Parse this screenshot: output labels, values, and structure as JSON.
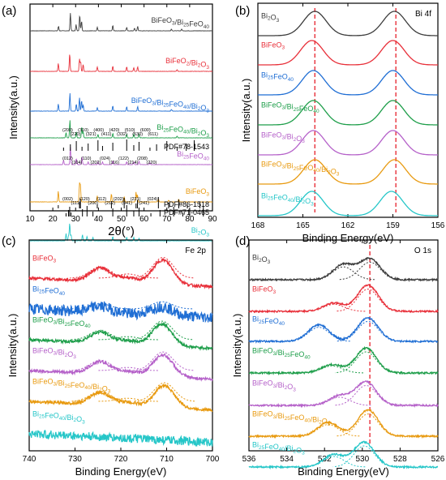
{
  "chart_data": [
    {
      "type": "line",
      "panel_label": "(a)",
      "xlabel": "2θ(°)",
      "ylabel": "Intensity(a.u.)",
      "xlim": [
        10,
        90
      ],
      "xticks": [
        10,
        20,
        30,
        40,
        50,
        60,
        70,
        80,
        90
      ],
      "series": [
        {
          "name": "BiFeO3/Bi25FeO40",
          "color": "#3c3c3c",
          "peaks": [
            [
              27.7,
              1.0
            ],
            [
              30.2,
              0.35
            ],
            [
              31.8,
              0.9
            ],
            [
              32.6,
              0.55
            ],
            [
              22.5,
              0.25
            ],
            [
              39.5,
              0.2
            ],
            [
              46.3,
              0.3
            ],
            [
              57.2,
              0.25
            ],
            [
              52.4,
              0.2
            ],
            [
              55.8,
              0.15
            ],
            [
              72.0,
              0.1
            ],
            [
              76.5,
              0.1
            ]
          ]
        },
        {
          "name": "BiFeO2/Bi2O3",
          "color": "#e8303a",
          "peaks": [
            [
              27.4,
              1.0
            ],
            [
              22.4,
              0.45
            ],
            [
              31.7,
              0.7
            ],
            [
              32.2,
              0.55
            ],
            [
              33.3,
              0.4
            ],
            [
              39.5,
              0.25
            ],
            [
              46.3,
              0.3
            ],
            [
              52.4,
              0.25
            ],
            [
              55.5,
              0.2
            ],
            [
              57.2,
              0.25
            ],
            [
              74.5,
              0.1
            ]
          ]
        },
        {
          "name": "BiFeO3/Bi25FeO40/Bi2O3",
          "color": "#1f6ed4",
          "peaks": [
            [
              27.5,
              1.0
            ],
            [
              22.4,
              0.4
            ],
            [
              30.3,
              0.4
            ],
            [
              31.7,
              0.75
            ],
            [
              32.6,
              0.6
            ],
            [
              33.3,
              0.35
            ],
            [
              39.5,
              0.2
            ],
            [
              46.3,
              0.3
            ],
            [
              52.4,
              0.25
            ],
            [
              57.2,
              0.25
            ],
            [
              72.0,
              0.1
            ]
          ]
        },
        {
          "name": "Bi25FeO40/Bi2O3",
          "color": "#1e9e4a",
          "peaks": [
            [
              27.5,
              1.0
            ],
            [
              25.8,
              0.3
            ],
            [
              30.3,
              0.35
            ],
            [
              32.7,
              0.6
            ],
            [
              33.3,
              0.35
            ],
            [
              39.8,
              0.2
            ],
            [
              46.3,
              0.25
            ],
            [
              52.4,
              0.2
            ],
            [
              55.5,
              0.2
            ],
            [
              57.8,
              0.2
            ],
            [
              74.5,
              0.1
            ]
          ]
        },
        {
          "name": "Bi25FeO40",
          "color": "#b561c9",
          "peaks": [
            [
              27.7,
              1.0
            ],
            [
              24.7,
              0.25
            ],
            [
              30.3,
              0.35
            ],
            [
              32.8,
              0.45
            ],
            [
              35.5,
              0.15
            ],
            [
              39.8,
              0.15
            ],
            [
              41.8,
              0.15
            ],
            [
              46.3,
              0.2
            ],
            [
              52.4,
              0.15
            ],
            [
              55.5,
              0.15
            ],
            [
              57.8,
              0.2
            ],
            [
              62.6,
              0.1
            ]
          ]
        },
        {
          "name": "BiFeO3",
          "color": "#e89a10",
          "peaks": [
            [
              22.4,
              0.6
            ],
            [
              31.7,
              1.0
            ],
            [
              32.1,
              0.9
            ],
            [
              39.5,
              0.35
            ],
            [
              45.7,
              0.45
            ],
            [
              51.3,
              0.3
            ],
            [
              56.5,
              0.55
            ],
            [
              57.1,
              0.4
            ],
            [
              66.3,
              0.15
            ],
            [
              70.8,
              0.1
            ],
            [
              75.2,
              0.15
            ]
          ]
        },
        {
          "name": "Bi2O3",
          "color": "#25c6c8",
          "peaks": [
            [
              27.4,
              1.0
            ],
            [
              25.8,
              0.4
            ],
            [
              26.9,
              0.3
            ],
            [
              28.0,
              0.35
            ],
            [
              33.0,
              0.35
            ],
            [
              35.0,
              0.25
            ],
            [
              37.6,
              0.2
            ],
            [
              46.3,
              0.25
            ],
            [
              52.4,
              0.2
            ],
            [
              55.5,
              0.2
            ],
            [
              57.8,
              0.15
            ]
          ]
        }
      ],
      "references": [
        {
          "label": "PDF#78-1543",
          "sticks": [
            24.7,
            27.7,
            30.3,
            32.8,
            35.5,
            39.8,
            41.8,
            46.3,
            52.4,
            55.5,
            57.8,
            62.6,
            65.5,
            70.0,
            74.5,
            78.5,
            82.0
          ]
        },
        {
          "label": "PDF#86-1518",
          "sticks": [
            22.4,
            31.7,
            32.1,
            39.5,
            45.7,
            51.3,
            56.5,
            57.1,
            66.3,
            70.8,
            75.2,
            79.0,
            84.5
          ]
        },
        {
          "label": "PDF#71-0465",
          "sticks": [
            25.8,
            26.9,
            27.4,
            28.0,
            33.0,
            35.0,
            37.6,
            46.3,
            52.4,
            55.5,
            57.8,
            63.0,
            67.0,
            73.0,
            77.0,
            80.0,
            86.0
          ]
        }
      ],
      "peak_labels": {
        "Bi25FeO40": [
          "(200)",
          "(220)",
          "(310)",
          "(321)",
          "(400)",
          "(411)",
          "(420)",
          "(332)",
          "(510)",
          "(530)",
          "(600)",
          "(611)"
        ],
        "BiFeO3": [
          "(012)",
          "(104)",
          "(110)",
          "(202)",
          "(024)",
          "(116)",
          "(122)",
          "(214)",
          "(208)",
          "(220)"
        ],
        "Bi2O3": [
          "(002)",
          "(111)",
          "(120)",
          "(200)",
          "(112)",
          "(212)",
          "(202)",
          "(041)",
          "(231)",
          "(241)",
          "(024)"
        ]
      }
    },
    {
      "type": "line",
      "panel_label": "(b)",
      "panel_title": "Bi 4f",
      "xlabel": "Binding Energy(eV)",
      "ylabel": "Intensity(a.u.)",
      "xlim": [
        168,
        156
      ],
      "xticks": [
        168,
        165,
        162,
        159,
        156
      ],
      "reference_lines": [
        164.2,
        158.8
      ],
      "series": [
        {
          "name": "Bi2O3",
          "color": "#3c3c3c",
          "peaks": [
            [
              164.2,
              1.0
            ],
            [
              158.9,
              1.0
            ]
          ]
        },
        {
          "name": "BiFeO3",
          "color": "#e8303a",
          "peaks": [
            [
              164.4,
              1.0
            ],
            [
              159.0,
              1.0
            ]
          ]
        },
        {
          "name": "Bi25FeO40",
          "color": "#1f6ed4",
          "peaks": [
            [
              164.3,
              1.0
            ],
            [
              159.0,
              1.0
            ]
          ]
        },
        {
          "name": "BiFeO3/Bi25FeO40",
          "color": "#1e9e4a",
          "peaks": [
            [
              164.3,
              1.0
            ],
            [
              159.0,
              1.0
            ]
          ]
        },
        {
          "name": "BiFeO3/Bi2O3",
          "color": "#b561c9",
          "peaks": [
            [
              164.3,
              1.0
            ],
            [
              159.0,
              1.0
            ]
          ]
        },
        {
          "name": "BiFeO3/Bi25FeO40/Bi2O3",
          "color": "#e89a10",
          "peaks": [
            [
              164.2,
              1.0
            ],
            [
              158.9,
              1.0
            ]
          ]
        },
        {
          "name": "Bi25FeO40/Bi2O3",
          "color": "#25c6c8",
          "peaks": [
            [
              164.4,
              1.0
            ],
            [
              159.1,
              1.0
            ]
          ]
        }
      ]
    },
    {
      "type": "line",
      "panel_label": "(c)",
      "panel_title": "Fe 2p",
      "xlabel": "Binding Energy(eV)",
      "ylabel": "Intensity(a.u.)",
      "xlim": [
        740,
        700
      ],
      "xticks": [
        740,
        730,
        720,
        710,
        700
      ],
      "series": [
        {
          "name": "BiFeO3",
          "color": "#e8303a",
          "peaks": [
            [
              724.5,
              0.55
            ],
            [
              718.5,
              0.2
            ],
            [
              710.8,
              1.0
            ]
          ]
        },
        {
          "name": "Bi25FeO40",
          "color": "#1f6ed4",
          "peaks": [
            [
              724.5,
              0.25
            ],
            [
              711.0,
              0.35
            ]
          ]
        },
        {
          "name": "BiFeO3/Bi25FeO40",
          "color": "#1e9e4a",
          "peaks": [
            [
              724.5,
              0.45
            ],
            [
              718.5,
              0.15
            ],
            [
              711.0,
              0.9
            ]
          ]
        },
        {
          "name": "BiFeO3/Bi2O3",
          "color": "#b561c9",
          "peaks": [
            [
              724.5,
              0.5
            ],
            [
              718.5,
              0.15
            ],
            [
              710.8,
              0.9
            ]
          ]
        },
        {
          "name": "BiFeO3/Bi25FeO40/Bi2O3",
          "color": "#e89a10",
          "peaks": [
            [
              724.5,
              0.5
            ],
            [
              718.5,
              0.15
            ],
            [
              710.5,
              0.9
            ]
          ]
        },
        {
          "name": "Bi25FeO40/Bi2O3",
          "color": "#25c6c8",
          "peaks": []
        }
      ]
    },
    {
      "type": "line",
      "panel_label": "(d)",
      "panel_title": "O 1s",
      "xlabel": "Binding Energy(eV)",
      "ylabel": "Intensity(a.u.)",
      "xlim": [
        536,
        526
      ],
      "xticks": [
        536,
        534,
        532,
        530,
        528,
        526
      ],
      "reference_lines": [
        529.6
      ],
      "series": [
        {
          "name": "Bi2O3",
          "color": "#3c3c3c",
          "peaks": [
            [
              531.0,
              0.55
            ],
            [
              529.6,
              0.75
            ]
          ]
        },
        {
          "name": "BiFeO3",
          "color": "#e8303a",
          "peaks": [
            [
              531.5,
              0.3
            ],
            [
              529.7,
              0.95
            ]
          ]
        },
        {
          "name": "Bi25FeO40",
          "color": "#1f6ed4",
          "peaks": [
            [
              532.3,
              0.6
            ],
            [
              529.7,
              0.85
            ]
          ]
        },
        {
          "name": "BiFeO3/Bi25FeO40",
          "color": "#1e9e4a",
          "peaks": [
            [
              531.6,
              0.3
            ],
            [
              529.8,
              0.9
            ]
          ]
        },
        {
          "name": "BiFeO3/Bi2O3",
          "color": "#b561c9",
          "peaks": [
            [
              531.2,
              0.35
            ],
            [
              529.8,
              0.85
            ]
          ]
        },
        {
          "name": "BiFeO3/Bi25FeO40/Bi2O3",
          "color": "#e89a10",
          "peaks": [
            [
              531.8,
              0.5
            ],
            [
              529.7,
              0.95
            ]
          ]
        },
        {
          "name": "Bi25FeO40/Bi2O3",
          "color": "#25c6c8",
          "peaks": [
            [
              531.5,
              0.45
            ],
            [
              529.9,
              0.9
            ]
          ]
        }
      ]
    }
  ]
}
